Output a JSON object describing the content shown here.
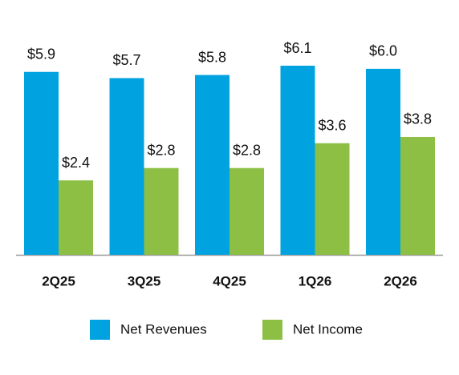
{
  "chart_data": {
    "type": "bar",
    "categories": [
      "2Q25",
      "3Q25",
      "4Q25",
      "1Q26",
      "2Q26"
    ],
    "series": [
      {
        "name": "Net Revenues",
        "color": "#00a3e0",
        "values": [
          5.9,
          5.7,
          5.8,
          6.1,
          6.0
        ],
        "value_labels": [
          "$5.9",
          "$5.7",
          "$5.8",
          "$6.1",
          "$6.0"
        ]
      },
      {
        "name": "Net Income",
        "color": "#8cbf44",
        "values": [
          2.4,
          2.8,
          2.8,
          3.6,
          3.8
        ],
        "value_labels": [
          "$2.4",
          "$2.8",
          "$2.8",
          "$3.6",
          "$3.8"
        ]
      }
    ]
  }
}
